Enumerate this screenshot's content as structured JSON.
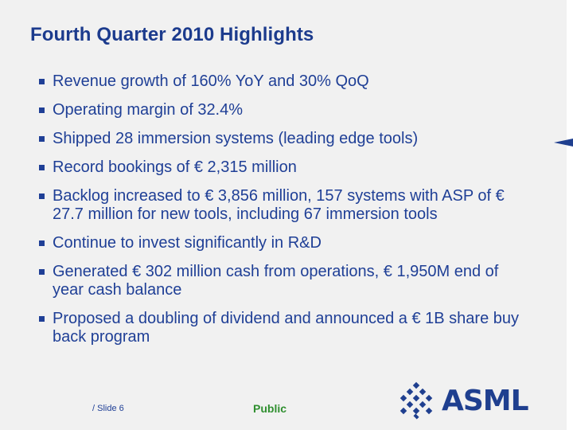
{
  "slide": {
    "title": "Fourth Quarter 2010 Highlights",
    "bullets": [
      "Revenue growth of 160% YoY and 30% QoQ",
      "Operating margin of 32.4%",
      "Shipped 28 immersion systems (leading edge tools)",
      "Record bookings of € 2,315 million",
      "Backlog increased to € 3,856 million, 157 systems with ASP of € 27.7 million for new tools, including 67 immersion tools",
      "Continue to invest significantly in R&D",
      "Generated € 302 million cash from operations, € 1,950M end of year cash balance",
      "Proposed a doubling of dividend and announced a € 1B share buy back program"
    ],
    "footer": {
      "slide_number": "/ Slide 6",
      "classification": "Public",
      "logo_text": "ASML"
    }
  },
  "colors": {
    "title": "#1c3b8d",
    "text": "#1f3f96",
    "public": "#2f8f2f",
    "background": "#f1f1f1",
    "accent": "#1f3f8f"
  },
  "icons": {
    "logo_mark": "asml-diamond-logo-icon",
    "side_marker": "triangle-marker-icon"
  }
}
